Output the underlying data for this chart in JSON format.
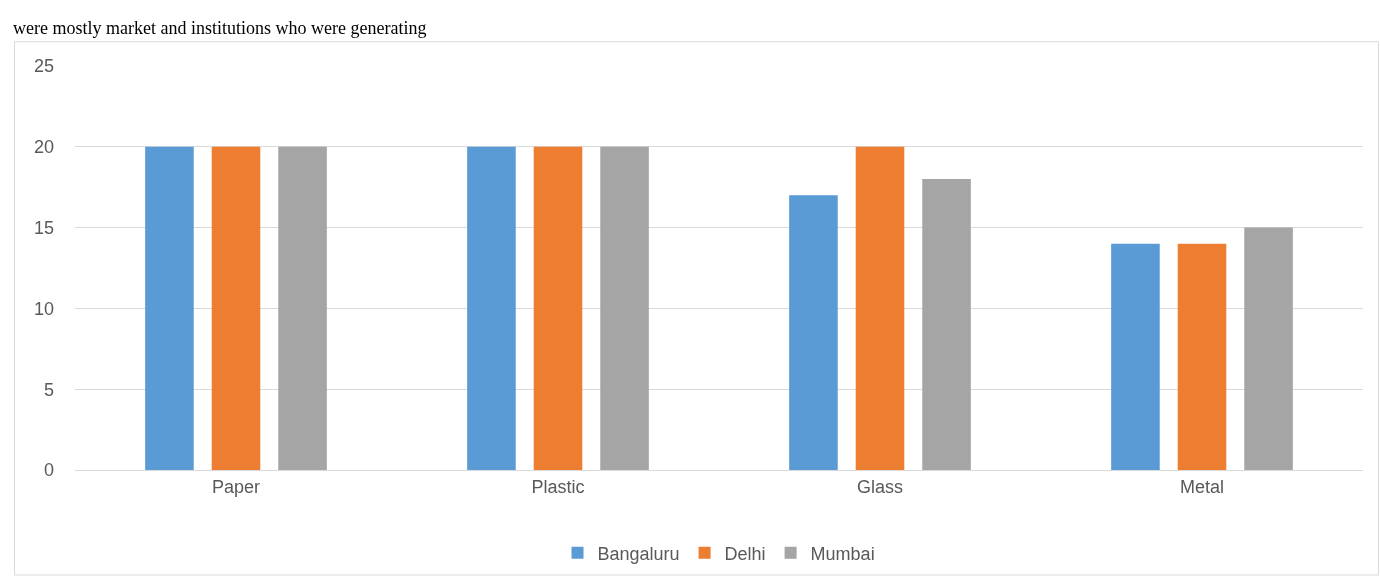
{
  "chart_data": {
    "type": "bar",
    "categories": [
      "Paper",
      "Plastic",
      "Glass",
      "Metal"
    ],
    "series": [
      {
        "name": "Bangaluru",
        "color": "#5b9bd5",
        "values": [
          20,
          20,
          17,
          14
        ]
      },
      {
        "name": "Delhi",
        "color": "#ed7d31",
        "values": [
          20,
          20,
          20,
          14
        ]
      },
      {
        "name": "Mumbai",
        "color": "#a5a5a5",
        "values": [
          20,
          20,
          18,
          15
        ]
      }
    ],
    "ylim": [
      0,
      25
    ],
    "yticks": [
      0,
      5,
      10,
      15,
      20,
      25
    ],
    "grid": "y",
    "legend": "bottom",
    "annotations": [
      "were mostly market and institutions who were generating"
    ]
  }
}
